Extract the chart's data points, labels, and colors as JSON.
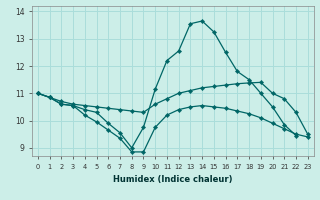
{
  "xlabel": "Humidex (Indice chaleur)",
  "bg_color": "#cceee8",
  "grid_color": "#aaddda",
  "line_color": "#006666",
  "xlim": [
    -0.5,
    23.5
  ],
  "ylim": [
    8.7,
    14.2
  ],
  "xticks": [
    0,
    1,
    2,
    3,
    4,
    5,
    6,
    7,
    8,
    9,
    10,
    11,
    12,
    13,
    14,
    15,
    16,
    17,
    18,
    19,
    20,
    21,
    22,
    23
  ],
  "yticks": [
    9,
    10,
    11,
    12,
    13,
    14
  ],
  "series": [
    {
      "x": [
        0,
        1,
        2,
        3,
        4,
        5,
        6,
        7,
        8,
        9,
        10,
        11,
        12,
        13,
        14,
        15,
        16,
        17,
        18,
        19,
        20,
        21,
        22,
        23
      ],
      "y": [
        11.0,
        10.85,
        10.6,
        10.55,
        10.4,
        10.3,
        9.9,
        9.55,
        9.0,
        9.75,
        11.15,
        12.2,
        12.55,
        13.55,
        13.65,
        13.25,
        12.5,
        11.8,
        11.5,
        11.0,
        10.5,
        9.85,
        9.45,
        null
      ]
    },
    {
      "x": [
        0,
        1,
        2,
        3,
        4,
        5,
        6,
        7,
        8,
        9,
        10,
        11,
        12,
        13,
        14,
        15,
        16,
        17,
        18,
        19,
        20,
        21,
        22,
        23
      ],
      "y": [
        11.0,
        10.85,
        10.7,
        10.6,
        10.55,
        10.5,
        10.45,
        10.4,
        10.35,
        10.3,
        10.6,
        10.8,
        11.0,
        11.1,
        11.2,
        11.25,
        11.3,
        11.35,
        11.38,
        11.4,
        11.0,
        10.8,
        10.3,
        9.5
      ]
    },
    {
      "x": [
        0,
        1,
        2,
        3,
        4,
        5,
        6,
        7,
        8,
        9,
        10,
        11,
        12,
        13,
        14,
        15,
        16,
        17,
        18,
        19,
        20,
        21,
        22,
        23
      ],
      "y": [
        11.0,
        10.85,
        10.6,
        10.55,
        10.2,
        9.95,
        9.65,
        9.35,
        8.85,
        8.85,
        9.75,
        10.2,
        10.4,
        10.5,
        10.55,
        10.5,
        10.45,
        10.35,
        10.25,
        10.1,
        9.9,
        9.7,
        9.5,
        9.4
      ]
    },
    {
      "x": [
        0,
        1,
        2,
        3,
        4,
        5,
        6,
        7,
        8,
        9,
        10,
        11,
        12,
        13,
        14,
        15,
        16,
        17,
        18,
        19,
        20,
        21,
        22,
        23
      ],
      "y": [
        null,
        null,
        null,
        null,
        null,
        null,
        null,
        null,
        null,
        null,
        null,
        null,
        null,
        null,
        null,
        null,
        null,
        null,
        null,
        null,
        null,
        null,
        null,
        null
      ]
    }
  ]
}
